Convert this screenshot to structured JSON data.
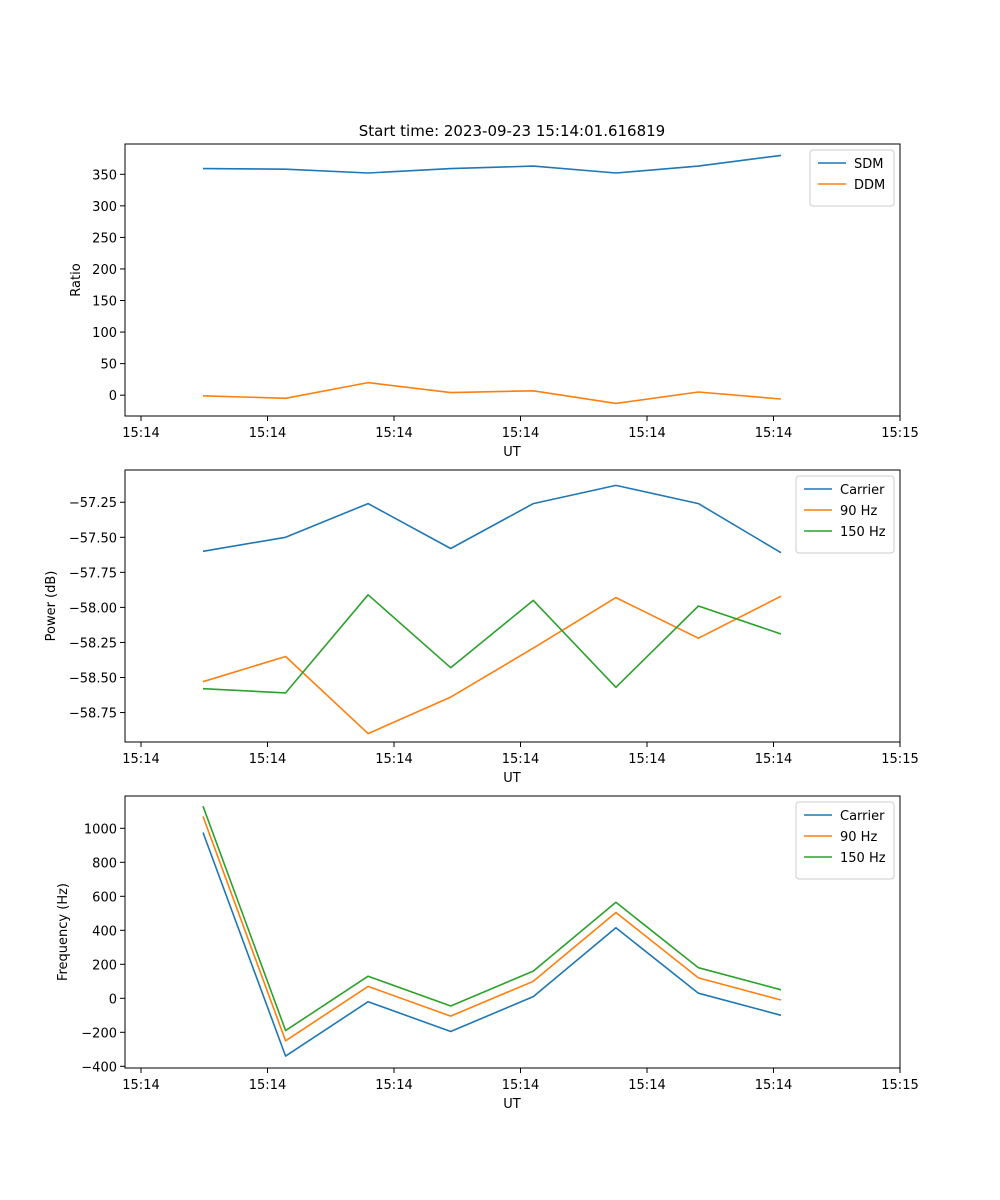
{
  "figure": {
    "title": "Start time: 2023-09-23 15:14:01.616819"
  },
  "chart_data": [
    {
      "type": "line",
      "xlabel": "UT",
      "ylabel": "Ratio",
      "xticks": [
        "15:14",
        "15:14",
        "15:14",
        "15:14",
        "15:14",
        "15:14",
        "15:15"
      ],
      "yticks": [
        0,
        50,
        100,
        150,
        200,
        250,
        300,
        350
      ],
      "ylim": [
        -33,
        398
      ],
      "legend": "top-right",
      "x": [
        1,
        2,
        3,
        4,
        5,
        6,
        7,
        8
      ],
      "series": [
        {
          "name": "SDM",
          "color": "#1f77b4",
          "values": [
            359,
            358,
            352,
            359,
            363,
            352,
            363,
            380
          ]
        },
        {
          "name": "DDM",
          "color": "#ff7f0e",
          "values": [
            -1,
            -5,
            20,
            4,
            7,
            -13,
            5,
            -6
          ]
        }
      ]
    },
    {
      "type": "line",
      "xlabel": "UT",
      "ylabel": "Power (dB)",
      "xticks": [
        "15:14",
        "15:14",
        "15:14",
        "15:14",
        "15:14",
        "15:14",
        "15:15"
      ],
      "yticks": [
        -57.25,
        -57.5,
        -57.75,
        -58.0,
        -58.25,
        -58.5,
        -58.75
      ],
      "yticklabels": [
        "−57.25",
        "−57.50",
        "−57.75",
        "−58.00",
        "−58.25",
        "−58.50",
        "−58.75"
      ],
      "ylim": [
        -58.96,
        -57.02
      ],
      "legend": "top-right",
      "x": [
        1,
        2,
        3,
        4,
        5,
        6,
        7,
        8
      ],
      "series": [
        {
          "name": "Carrier",
          "color": "#1f77b4",
          "values": [
            -57.6,
            -57.5,
            -57.26,
            -57.58,
            -57.26,
            -57.13,
            -57.26,
            -57.61
          ]
        },
        {
          "name": "90 Hz",
          "color": "#ff7f0e",
          "values": [
            -58.53,
            -58.35,
            -58.9,
            -58.64,
            -58.29,
            -57.93,
            -58.22,
            -57.92
          ]
        },
        {
          "name": "150 Hz",
          "color": "#2ca02c",
          "values": [
            -58.58,
            -58.61,
            -57.91,
            -58.43,
            -57.95,
            -58.57,
            -57.99,
            -58.19
          ]
        }
      ]
    },
    {
      "type": "line",
      "xlabel": "UT",
      "ylabel": "Frequency (Hz)",
      "xticks": [
        "15:14",
        "15:14",
        "15:14",
        "15:14",
        "15:14",
        "15:14",
        "15:15"
      ],
      "yticks": [
        -400,
        -200,
        0,
        200,
        400,
        600,
        800,
        1000
      ],
      "yticklabels": [
        "−400",
        "−200",
        "0",
        "200",
        "400",
        "600",
        "800",
        "1000"
      ],
      "ylim": [
        -410,
        1190
      ],
      "legend": "top-right",
      "x": [
        1,
        2,
        3,
        4,
        5,
        6,
        7,
        8
      ],
      "series": [
        {
          "name": "Carrier",
          "color": "#1f77b4",
          "values": [
            975,
            -340,
            -20,
            -195,
            10,
            415,
            30,
            -100
          ]
        },
        {
          "name": "90 Hz",
          "color": "#ff7f0e",
          "values": [
            1070,
            -250,
            70,
            -105,
            100,
            505,
            120,
            -10
          ]
        },
        {
          "name": "150 Hz",
          "color": "#2ca02c",
          "values": [
            1130,
            -190,
            130,
            -45,
            160,
            565,
            180,
            50
          ]
        }
      ]
    }
  ]
}
